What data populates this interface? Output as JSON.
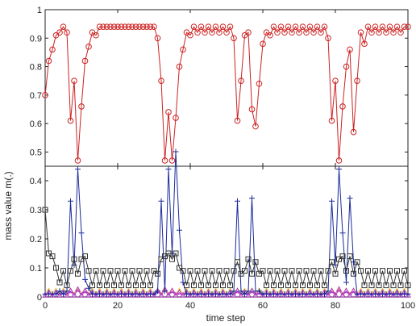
{
  "chart_data": [
    {
      "panel": "upper",
      "type": "line",
      "xlim": [
        0,
        100
      ],
      "ylim": [
        0.45,
        1
      ],
      "yticks": [
        0.5,
        0.6,
        0.7,
        0.8,
        0.9,
        1
      ],
      "ytick_labels": [
        "0.5",
        "0.6",
        "0.7",
        "0.8",
        "0.9",
        "1"
      ],
      "grid": false,
      "series": [
        {
          "marker": "circle",
          "color": "#cc2222",
          "x": [
            0,
            1,
            2,
            3,
            4,
            5,
            6,
            7,
            8,
            9,
            10,
            11,
            12,
            13,
            14,
            15,
            16,
            17,
            18,
            19,
            20,
            21,
            22,
            23,
            24,
            25,
            26,
            27,
            28,
            29,
            30,
            31,
            32,
            33,
            34,
            35,
            36,
            37,
            38,
            39,
            40,
            41,
            42,
            43,
            44,
            45,
            46,
            47,
            48,
            49,
            50,
            51,
            52,
            53,
            54,
            55,
            56,
            57,
            58,
            59,
            60,
            61,
            62,
            63,
            64,
            65,
            66,
            67,
            68,
            69,
            70,
            71,
            72,
            73,
            74,
            75,
            76,
            77,
            78,
            79,
            80,
            81,
            82,
            83,
            84,
            85,
            86,
            87,
            88,
            89,
            90,
            91,
            92,
            93,
            94,
            95,
            96,
            97,
            98,
            99,
            100
          ],
          "y": [
            0.7,
            0.82,
            0.86,
            0.91,
            0.92,
            0.94,
            0.92,
            0.61,
            0.75,
            0.47,
            0.66,
            0.82,
            0.87,
            0.92,
            0.91,
            0.94,
            0.94,
            0.94,
            0.94,
            0.94,
            0.94,
            0.94,
            0.94,
            0.94,
            0.94,
            0.94,
            0.94,
            0.94,
            0.94,
            0.94,
            0.94,
            0.9,
            0.75,
            0.47,
            0.64,
            0.47,
            0.62,
            0.8,
            0.86,
            0.92,
            0.91,
            0.94,
            0.92,
            0.94,
            0.92,
            0.94,
            0.92,
            0.94,
            0.92,
            0.94,
            0.92,
            0.94,
            0.9,
            0.61,
            0.75,
            0.91,
            0.92,
            0.65,
            0.59,
            0.74,
            0.88,
            0.92,
            0.91,
            0.94,
            0.92,
            0.94,
            0.92,
            0.94,
            0.92,
            0.94,
            0.92,
            0.94,
            0.92,
            0.94,
            0.92,
            0.94,
            0.92,
            0.94,
            0.9,
            0.61,
            0.75,
            0.47,
            0.66,
            0.8,
            0.86,
            0.57,
            0.75,
            0.92,
            0.88,
            0.94,
            0.92,
            0.94,
            0.92,
            0.94,
            0.92,
            0.94,
            0.92,
            0.94,
            0.92,
            0.94,
            0.94
          ]
        }
      ]
    },
    {
      "panel": "lower",
      "type": "line",
      "xlabel": "time step",
      "ylabel": "mass value m(.)",
      "xlim": [
        0,
        100
      ],
      "ylim": [
        0,
        0.45
      ],
      "xticks": [
        0,
        20,
        40,
        60,
        80,
        100
      ],
      "xtick_labels": [
        "0",
        "20",
        "40",
        "60",
        "80",
        "100"
      ],
      "yticks": [
        0,
        0.1,
        0.2,
        0.3,
        0.4
      ],
      "ytick_labels": [
        "0",
        "0.1",
        "0.2",
        "0.3",
        "0.4"
      ],
      "grid": false,
      "series": [
        {
          "marker": "square",
          "color": "#333333",
          "x": [
            0,
            1,
            2,
            3,
            4,
            5,
            6,
            7,
            8,
            9,
            10,
            11,
            12,
            13,
            14,
            15,
            16,
            17,
            18,
            19,
            20,
            21,
            22,
            23,
            24,
            25,
            26,
            27,
            28,
            29,
            30,
            31,
            32,
            33,
            34,
            35,
            36,
            37,
            38,
            39,
            40,
            41,
            42,
            43,
            44,
            45,
            46,
            47,
            48,
            49,
            50,
            51,
            52,
            53,
            54,
            55,
            56,
            57,
            58,
            59,
            60,
            61,
            62,
            63,
            64,
            65,
            66,
            67,
            68,
            69,
            70,
            71,
            72,
            73,
            74,
            75,
            76,
            77,
            78,
            79,
            80,
            81,
            82,
            83,
            84,
            85,
            86,
            87,
            88,
            89,
            90,
            91,
            92,
            93,
            94,
            95,
            96,
            97,
            98,
            99,
            100
          ],
          "y": [
            0.3,
            0.15,
            0.14,
            0.1,
            0.05,
            0.09,
            0.04,
            0.09,
            0.13,
            0.08,
            0.13,
            0.14,
            0.09,
            0.04,
            0.09,
            0.04,
            0.09,
            0.04,
            0.09,
            0.04,
            0.09,
            0.04,
            0.09,
            0.04,
            0.09,
            0.04,
            0.09,
            0.04,
            0.09,
            0.04,
            0.09,
            0.08,
            0.13,
            0.14,
            0.15,
            0.13,
            0.15,
            0.1,
            0.09,
            0.04,
            0.09,
            0.04,
            0.09,
            0.04,
            0.09,
            0.04,
            0.09,
            0.04,
            0.09,
            0.04,
            0.09,
            0.04,
            0.09,
            0.12,
            0.08,
            0.09,
            0.13,
            0.08,
            0.12,
            0.08,
            0.09,
            0.04,
            0.09,
            0.04,
            0.09,
            0.04,
            0.09,
            0.04,
            0.09,
            0.04,
            0.09,
            0.04,
            0.09,
            0.04,
            0.09,
            0.04,
            0.09,
            0.04,
            0.09,
            0.12,
            0.08,
            0.13,
            0.14,
            0.09,
            0.14,
            0.08,
            0.12,
            0.09,
            0.04,
            0.09,
            0.04,
            0.09,
            0.04,
            0.09,
            0.04,
            0.09,
            0.04,
            0.09,
            0.04,
            0.09,
            0.04
          ]
        },
        {
          "marker": "plus",
          "color": "#1a2a9a",
          "x": [
            0,
            1,
            2,
            3,
            4,
            5,
            6,
            7,
            8,
            9,
            10,
            11,
            12,
            13,
            14,
            15,
            16,
            17,
            18,
            19,
            20,
            21,
            22,
            23,
            24,
            25,
            26,
            27,
            28,
            29,
            30,
            31,
            32,
            33,
            34,
            35,
            36,
            37,
            38,
            39,
            40,
            41,
            42,
            43,
            44,
            45,
            46,
            47,
            48,
            49,
            50,
            51,
            52,
            53,
            54,
            55,
            56,
            57,
            58,
            59,
            60,
            61,
            62,
            63,
            64,
            65,
            66,
            67,
            68,
            69,
            70,
            71,
            72,
            73,
            74,
            75,
            76,
            77,
            78,
            79,
            80,
            81,
            82,
            83,
            84,
            85,
            86,
            87,
            88,
            89,
            90,
            91,
            92,
            93,
            94,
            95,
            96,
            97,
            98,
            99,
            100
          ],
          "y": [
            0.01,
            0.01,
            0.01,
            0.01,
            0.02,
            0.01,
            0.02,
            0.33,
            0.11,
            0.44,
            0.22,
            0.06,
            0.03,
            0.01,
            0.01,
            0.01,
            0.01,
            0.01,
            0.01,
            0.01,
            0.01,
            0.01,
            0.01,
            0.01,
            0.01,
            0.01,
            0.01,
            0.01,
            0.01,
            0.01,
            0.01,
            0.02,
            0.33,
            0.02,
            0.44,
            0.15,
            0.5,
            0.23,
            0.05,
            0.01,
            0.01,
            0.01,
            0.01,
            0.01,
            0.01,
            0.01,
            0.01,
            0.01,
            0.01,
            0.01,
            0.01,
            0.01,
            0.02,
            0.33,
            0.02,
            0.01,
            0.02,
            0.34,
            0.02,
            0.02,
            0.01,
            0.01,
            0.01,
            0.01,
            0.01,
            0.01,
            0.01,
            0.01,
            0.01,
            0.01,
            0.01,
            0.01,
            0.01,
            0.01,
            0.01,
            0.01,
            0.01,
            0.01,
            0.02,
            0.33,
            0.11,
            0.44,
            0.22,
            0.05,
            0.34,
            0.12,
            0.01,
            0.01,
            0.01,
            0.01,
            0.01,
            0.01,
            0.01,
            0.01,
            0.01,
            0.01,
            0.01,
            0.01,
            0.01,
            0.01,
            0.01
          ]
        },
        {
          "marker": "triangle",
          "color": "#b030c0",
          "x": [
            0,
            1,
            2,
            3,
            4,
            5,
            6,
            7,
            8,
            9,
            10,
            11,
            12,
            13,
            14,
            15,
            16,
            17,
            18,
            19,
            20,
            21,
            22,
            23,
            24,
            25,
            26,
            27,
            28,
            29,
            30,
            31,
            32,
            33,
            34,
            35,
            36,
            37,
            38,
            39,
            40,
            41,
            42,
            43,
            44,
            45,
            46,
            47,
            48,
            49,
            50,
            51,
            52,
            53,
            54,
            55,
            56,
            57,
            58,
            59,
            60,
            61,
            62,
            63,
            64,
            65,
            66,
            67,
            68,
            69,
            70,
            71,
            72,
            73,
            74,
            75,
            76,
            77,
            78,
            79,
            80,
            81,
            82,
            83,
            84,
            85,
            86,
            87,
            88,
            89,
            90,
            91,
            92,
            93,
            94,
            95,
            96,
            97,
            98,
            99,
            100
          ],
          "y": [
            0.005,
            0.015,
            0.005,
            0.015,
            0.005,
            0.015,
            0.005,
            0.02,
            0.005,
            0.025,
            0.005,
            0.02,
            0.005,
            0.015,
            0.005,
            0.015,
            0.005,
            0.015,
            0.005,
            0.015,
            0.005,
            0.015,
            0.005,
            0.015,
            0.005,
            0.015,
            0.005,
            0.015,
            0.005,
            0.015,
            0.005,
            0.02,
            0.005,
            0.025,
            0.005,
            0.02,
            0.005,
            0.015,
            0.005,
            0.015,
            0.005,
            0.015,
            0.005,
            0.015,
            0.005,
            0.015,
            0.005,
            0.015,
            0.005,
            0.015,
            0.005,
            0.015,
            0.005,
            0.02,
            0.005,
            0.015,
            0.005,
            0.02,
            0.005,
            0.015,
            0.005,
            0.015,
            0.005,
            0.015,
            0.005,
            0.015,
            0.005,
            0.015,
            0.005,
            0.015,
            0.005,
            0.015,
            0.005,
            0.015,
            0.005,
            0.015,
            0.005,
            0.015,
            0.005,
            0.02,
            0.005,
            0.025,
            0.005,
            0.02,
            0.005,
            0.02,
            0.005,
            0.015,
            0.005,
            0.015,
            0.005,
            0.015,
            0.005,
            0.015,
            0.005,
            0.015,
            0.005,
            0.015,
            0.005,
            0.015,
            0.005
          ]
        },
        {
          "marker": "none",
          "color": "#e8d84a",
          "x": [
            0,
            1,
            2,
            3,
            4,
            5,
            6,
            7,
            8,
            9,
            10,
            11,
            12,
            13,
            14,
            15,
            16,
            17,
            18,
            19,
            20,
            21,
            22,
            23,
            24,
            25,
            26,
            27,
            28,
            29,
            30,
            31,
            32,
            33,
            34,
            35,
            36,
            37,
            38,
            39,
            40,
            41,
            42,
            43,
            44,
            45,
            46,
            47,
            48,
            49,
            50,
            51,
            52,
            53,
            54,
            55,
            56,
            57,
            58,
            59,
            60,
            61,
            62,
            63,
            64,
            65,
            66,
            67,
            68,
            69,
            70,
            71,
            72,
            73,
            74,
            75,
            76,
            77,
            78,
            79,
            80,
            81,
            82,
            83,
            84,
            85,
            86,
            87,
            88,
            89,
            90,
            91,
            92,
            93,
            94,
            95,
            96,
            97,
            98,
            99,
            100
          ],
          "y": [
            0.01,
            0.03,
            0.01,
            0.03,
            0.01,
            0.03,
            0.01,
            0.03,
            0.01,
            0.03,
            0.01,
            0.03,
            0.01,
            0.03,
            0.01,
            0.03,
            0.01,
            0.03,
            0.01,
            0.03,
            0.01,
            0.03,
            0.01,
            0.03,
            0.01,
            0.03,
            0.01,
            0.03,
            0.01,
            0.03,
            0.01,
            0.03,
            0.01,
            0.03,
            0.01,
            0.03,
            0.01,
            0.03,
            0.01,
            0.03,
            0.01,
            0.03,
            0.01,
            0.03,
            0.01,
            0.03,
            0.01,
            0.03,
            0.01,
            0.03,
            0.01,
            0.03,
            0.01,
            0.03,
            0.01,
            0.03,
            0.01,
            0.03,
            0.01,
            0.03,
            0.01,
            0.03,
            0.01,
            0.03,
            0.01,
            0.03,
            0.01,
            0.03,
            0.01,
            0.03,
            0.01,
            0.03,
            0.01,
            0.03,
            0.01,
            0.03,
            0.01,
            0.03,
            0.01,
            0.03,
            0.01,
            0.03,
            0.01,
            0.03,
            0.01,
            0.03,
            0.01,
            0.03,
            0.01,
            0.03,
            0.01,
            0.03,
            0.01,
            0.03,
            0.01,
            0.03,
            0.01,
            0.03,
            0.01,
            0.03,
            0.01
          ]
        }
      ]
    }
  ]
}
